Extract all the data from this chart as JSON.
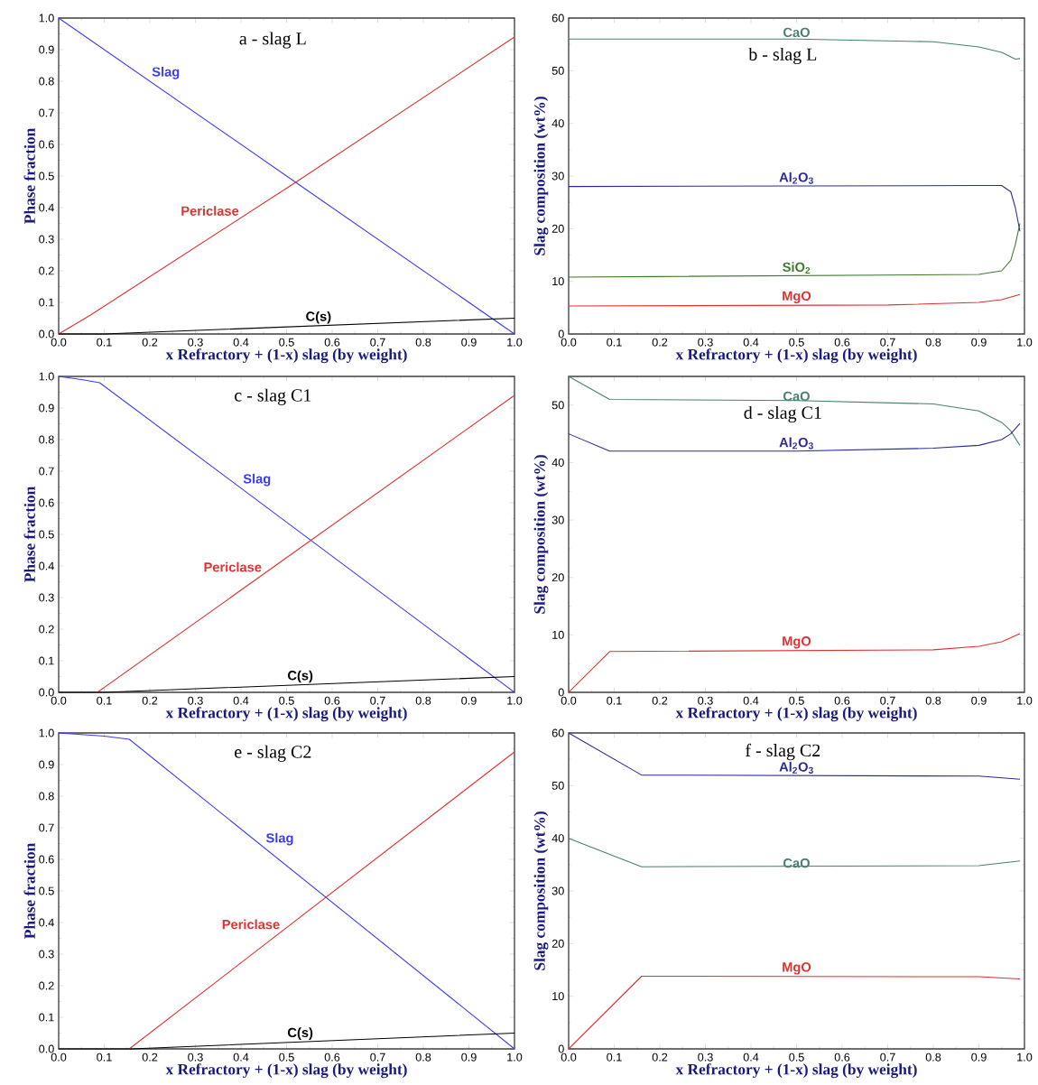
{
  "chart_data": [
    {
      "type": "line",
      "title": "a - slag L",
      "xlabel": "x Refractory + (1-x) slag (by weight)",
      "ylabel": "Phase fraction",
      "xlim": [
        0,
        1
      ],
      "ylim": [
        0,
        1
      ],
      "xticks": [
        {
          "value": 0,
          "label": "0.0"
        },
        {
          "value": 0.1,
          "label": "0.1"
        },
        {
          "value": 0.2,
          "label": "0.2"
        },
        {
          "value": 0.3,
          "label": "0.3"
        },
        {
          "value": 0.4,
          "label": "0.4"
        },
        {
          "value": 0.5,
          "label": "0.5"
        },
        {
          "value": 0.6,
          "label": "0.6"
        },
        {
          "value": 0.7,
          "label": "0.7"
        },
        {
          "value": 0.8,
          "label": "0.8"
        },
        {
          "value": 0.9,
          "label": "0.9"
        },
        {
          "value": 1,
          "label": "1.0"
        }
      ],
      "yticks": [
        {
          "value": 0,
          "label": "0.0"
        },
        {
          "value": 0.1,
          "label": "0.1"
        },
        {
          "value": 0.2,
          "label": "0.2"
        },
        {
          "value": 0.3,
          "label": "0.3"
        },
        {
          "value": 0.4,
          "label": "0.4"
        },
        {
          "value": 0.5,
          "label": "0.5"
        },
        {
          "value": 0.6,
          "label": "0.6"
        },
        {
          "value": 0.7,
          "label": "0.7"
        },
        {
          "value": 0.8,
          "label": "0.8"
        },
        {
          "value": 0.9,
          "label": "0.9"
        },
        {
          "value": 1,
          "label": "1.0"
        }
      ],
      "series": [
        {
          "name": "Slag",
          "color": "#3a3aff",
          "x": [
            0,
            0.52,
            1
          ],
          "values": [
            1,
            0.48,
            0
          ]
        },
        {
          "name": "Periclase",
          "color": "#e03030",
          "x": [
            0,
            0.07,
            0.52,
            1
          ],
          "values": [
            0,
            0.06,
            0.48,
            0.94
          ]
        },
        {
          "name": "C(s)",
          "color": "#000000",
          "x": [
            0,
            0.1,
            1
          ],
          "values": [
            0,
            0,
            0.05
          ]
        }
      ]
    },
    {
      "type": "line",
      "title": "b - slag L",
      "xlabel": "x Refractory + (1-x) slag (by weight)",
      "ylabel": "Slag composition (wt%)",
      "xlim": [
        0,
        1
      ],
      "ylim": [
        0,
        60
      ],
      "xticks": [
        {
          "value": 0,
          "label": "0.0"
        },
        {
          "value": 0.1,
          "label": "0.1"
        },
        {
          "value": 0.2,
          "label": "0.2"
        },
        {
          "value": 0.3,
          "label": "0.3"
        },
        {
          "value": 0.4,
          "label": "0.4"
        },
        {
          "value": 0.5,
          "label": "0.5"
        },
        {
          "value": 0.6,
          "label": "0.6"
        },
        {
          "value": 0.7,
          "label": "0.7"
        },
        {
          "value": 0.8,
          "label": "0.8"
        },
        {
          "value": 0.9,
          "label": "0.9"
        },
        {
          "value": 1,
          "label": "1.0"
        }
      ],
      "yticks": [
        0,
        10,
        20,
        30,
        40,
        50,
        60
      ],
      "series": [
        {
          "name": "CaO",
          "color": "#4a7f72",
          "x": [
            0,
            0.5,
            0.8,
            0.9,
            0.95,
            0.98,
            0.99
          ],
          "values": [
            56,
            56,
            55.5,
            54.5,
            53.5,
            52.2,
            52.3
          ]
        },
        {
          "name": "Al$_{2}$O$_{3}$",
          "color": "#2a2a9a",
          "x": [
            0,
            0.9,
            0.95,
            0.97,
            0.98,
            0.99
          ],
          "values": [
            28,
            28.2,
            28.2,
            27,
            24,
            19.5
          ]
        },
        {
          "name": "SiO$_{2}$",
          "color": "#3d7a2a",
          "x": [
            0,
            0.9,
            0.95,
            0.97,
            0.98,
            0.99
          ],
          "values": [
            10.8,
            11.3,
            12,
            14,
            17,
            21
          ]
        },
        {
          "name": "MgO",
          "color": "#e03030",
          "x": [
            0,
            0.7,
            0.9,
            0.95,
            0.99
          ],
          "values": [
            5.3,
            5.5,
            6,
            6.5,
            7.5
          ]
        }
      ]
    },
    {
      "type": "line",
      "title": "c - slag C1",
      "xlabel": "x Refractory + (1-x) slag (by weight)",
      "ylabel": "Phase fraction",
      "xlim": [
        0,
        1
      ],
      "ylim": [
        0,
        1
      ],
      "xticks": [
        {
          "value": 0,
          "label": "0.0"
        },
        {
          "value": 0.1,
          "label": "0.1"
        },
        {
          "value": 0.2,
          "label": "0.2"
        },
        {
          "value": 0.3,
          "label": "0.3"
        },
        {
          "value": 0.4,
          "label": "0.4"
        },
        {
          "value": 0.5,
          "label": "0.5"
        },
        {
          "value": 0.6,
          "label": "0.6"
        },
        {
          "value": 0.7,
          "label": "0.7"
        },
        {
          "value": 0.8,
          "label": "0.8"
        },
        {
          "value": 0.9,
          "label": "0.9"
        },
        {
          "value": 1,
          "label": "1.0"
        }
      ],
      "yticks": [
        {
          "value": 0,
          "label": "0.0"
        },
        {
          "value": 0.1,
          "label": "0.1"
        },
        {
          "value": 0.2,
          "label": "0.2"
        },
        {
          "value": 0.3,
          "label": "0.3"
        },
        {
          "value": 0.4,
          "label": "0.4"
        },
        {
          "value": 0.5,
          "label": "0.5"
        },
        {
          "value": 0.6,
          "label": "0.6"
        },
        {
          "value": 0.7,
          "label": "0.7"
        },
        {
          "value": 0.8,
          "label": "0.8"
        },
        {
          "value": 0.9,
          "label": "0.9"
        },
        {
          "value": 1,
          "label": "1.0"
        }
      ],
      "series": [
        {
          "name": "Slag",
          "color": "#3a3aff",
          "x": [
            0,
            0.05,
            0.09,
            1
          ],
          "values": [
            1,
            0.99,
            0.98,
            0
          ]
        },
        {
          "name": "Periclase",
          "color": "#e03030",
          "x": [
            0.085,
            1
          ],
          "values": [
            0,
            0.94
          ]
        },
        {
          "name": "C(s)",
          "color": "#000000",
          "x": [
            0,
            0.1,
            1
          ],
          "values": [
            0,
            0,
            0.05
          ]
        }
      ]
    },
    {
      "type": "line",
      "title": "d - slag C1",
      "xlabel": "x Refractory + (1-x) slag (by weight)",
      "ylabel": "Slag composition (wt%)",
      "xlim": [
        0,
        1
      ],
      "ylim": [
        0,
        55
      ],
      "xticks": [
        {
          "value": 0,
          "label": "0.0"
        },
        {
          "value": 0.1,
          "label": "0.1"
        },
        {
          "value": 0.2,
          "label": "0.2"
        },
        {
          "value": 0.3,
          "label": "0.3"
        },
        {
          "value": 0.4,
          "label": "0.4"
        },
        {
          "value": 0.5,
          "label": "0.5"
        },
        {
          "value": 0.6,
          "label": "0.6"
        },
        {
          "value": 0.7,
          "label": "0.7"
        },
        {
          "value": 0.8,
          "label": "0.8"
        },
        {
          "value": 0.9,
          "label": "0.9"
        },
        {
          "value": 1,
          "label": "1.0"
        }
      ],
      "yticks": [
        0,
        10,
        20,
        30,
        40,
        50
      ],
      "series": [
        {
          "name": "CaO",
          "color": "#4a7f72",
          "x": [
            0,
            0.09,
            0.5,
            0.8,
            0.9,
            0.95,
            0.97,
            0.99
          ],
          "values": [
            55,
            51,
            50.8,
            50.2,
            49,
            47,
            45.5,
            43
          ]
        },
        {
          "name": "Al$_{2}$O$_{3}$",
          "color": "#2a2a9a",
          "x": [
            0,
            0.09,
            0.5,
            0.8,
            0.9,
            0.95,
            0.97,
            0.99
          ],
          "values": [
            45,
            42,
            42,
            42.5,
            43,
            44,
            45,
            46.8
          ]
        },
        {
          "name": "MgO",
          "color": "#e03030",
          "x": [
            0,
            0.09,
            0.8,
            0.9,
            0.95,
            0.99
          ],
          "values": [
            0,
            7.1,
            7.4,
            8,
            8.8,
            10.2
          ]
        }
      ]
    },
    {
      "type": "line",
      "title": "e - slag C2",
      "xlabel": "x Refractory + (1-x) slag (by weight)",
      "ylabel": "Phase fraction",
      "xlim": [
        0,
        1
      ],
      "ylim": [
        0,
        1
      ],
      "xticks": [
        {
          "value": 0,
          "label": "0.0"
        },
        {
          "value": 0.1,
          "label": "0.1"
        },
        {
          "value": 0.2,
          "label": "0.2"
        },
        {
          "value": 0.3,
          "label": "0.3"
        },
        {
          "value": 0.4,
          "label": "0.4"
        },
        {
          "value": 0.5,
          "label": "0.5"
        },
        {
          "value": 0.6,
          "label": "0.6"
        },
        {
          "value": 0.7,
          "label": "0.7"
        },
        {
          "value": 0.8,
          "label": "0.8"
        },
        {
          "value": 0.9,
          "label": "0.9"
        },
        {
          "value": 1,
          "label": "1.0"
        }
      ],
      "yticks": [
        {
          "value": 0,
          "label": "0.0"
        },
        {
          "value": 0.1,
          "label": "0.1"
        },
        {
          "value": 0.2,
          "label": "0.2"
        },
        {
          "value": 0.3,
          "label": "0.3"
        },
        {
          "value": 0.4,
          "label": "0.4"
        },
        {
          "value": 0.5,
          "label": "0.5"
        },
        {
          "value": 0.6,
          "label": "0.6"
        },
        {
          "value": 0.7,
          "label": "0.7"
        },
        {
          "value": 0.8,
          "label": "0.8"
        },
        {
          "value": 0.9,
          "label": "0.9"
        },
        {
          "value": 1,
          "label": "1.0"
        }
      ],
      "series": [
        {
          "name": "Slag",
          "color": "#3a3aff",
          "x": [
            0,
            0.1,
            0.155,
            1
          ],
          "values": [
            1,
            0.99,
            0.98,
            0
          ]
        },
        {
          "name": "Periclase",
          "color": "#e03030",
          "x": [
            0.155,
            1
          ],
          "values": [
            0,
            0.94
          ]
        },
        {
          "name": "C(s)",
          "color": "#000000",
          "x": [
            0,
            0.16,
            1
          ],
          "values": [
            0,
            0,
            0.05
          ]
        }
      ]
    },
    {
      "type": "line",
      "title": "f - slag C2",
      "xlabel": "x Refractory + (1-x) slag (by weight)",
      "ylabel": "Slag composition (wt%)",
      "xlim": [
        0,
        1
      ],
      "ylim": [
        0,
        60
      ],
      "xticks": [
        {
          "value": 0,
          "label": "0.0"
        },
        {
          "value": 0.1,
          "label": "0.1"
        },
        {
          "value": 0.2,
          "label": "0.2"
        },
        {
          "value": 0.3,
          "label": "0.3"
        },
        {
          "value": 0.4,
          "label": "0.4"
        },
        {
          "value": 0.5,
          "label": "0.5"
        },
        {
          "value": 0.6,
          "label": "0.6"
        },
        {
          "value": 0.7,
          "label": "0.7"
        },
        {
          "value": 0.8,
          "label": "0.8"
        },
        {
          "value": 0.9,
          "label": "0.9"
        },
        {
          "value": 1,
          "label": "1.0"
        }
      ],
      "yticks": [
        0,
        10,
        20,
        30,
        40,
        50,
        60
      ],
      "series": [
        {
          "name": "Al$_{2}$O$_{3}$",
          "color": "#2a2a9a",
          "x": [
            0,
            0.16,
            0.9,
            0.99
          ],
          "values": [
            60,
            52,
            51.8,
            51.2
          ]
        },
        {
          "name": "CaO",
          "color": "#4a7f72",
          "x": [
            0,
            0.16,
            0.9,
            0.99
          ],
          "values": [
            40,
            34.6,
            34.8,
            35.7
          ]
        },
        {
          "name": "MgO",
          "color": "#e03030",
          "x": [
            0,
            0.16,
            0.9,
            0.99
          ],
          "values": [
            0,
            13.8,
            13.7,
            13.3
          ]
        }
      ]
    }
  ]
}
